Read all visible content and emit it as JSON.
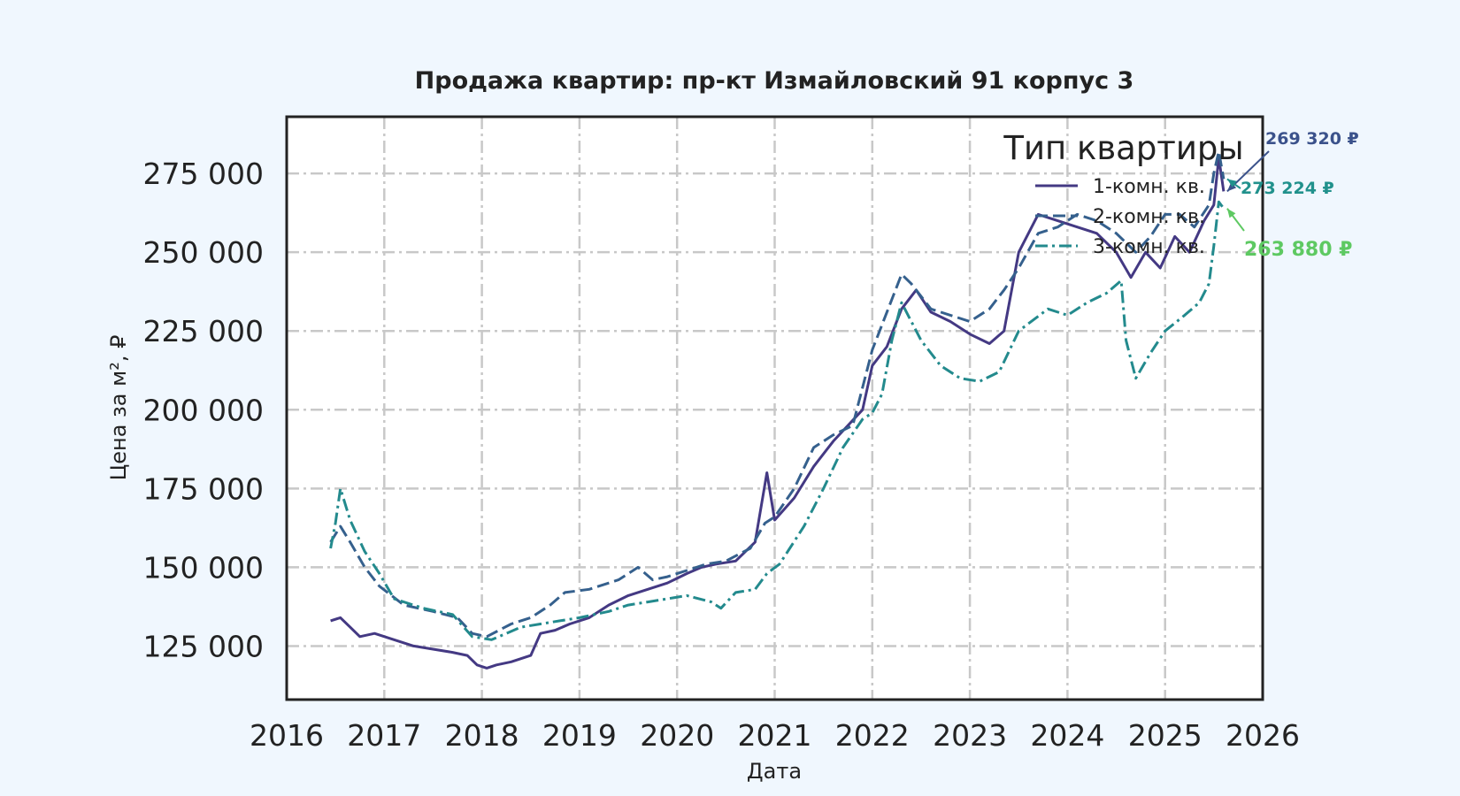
{
  "chart_data": {
    "type": "line",
    "title": "Продажа квартир: пр-кт Измайловский 91 корпус 3",
    "xlabel": "Дата",
    "ylabel": "Цена за м², ₽",
    "xlim": [
      2016.0,
      2026.0
    ],
    "ylim": [
      108000,
      293000
    ],
    "x_ticks": [
      "2016",
      "2017",
      "2018",
      "2019",
      "2020",
      "2021",
      "2022",
      "2023",
      "2024",
      "2025",
      "2026"
    ],
    "y_ticks": [
      "125 000",
      "150 000",
      "175 000",
      "200 000",
      "225 000",
      "250 000",
      "275 000"
    ],
    "grid": true,
    "legend": {
      "title": "Тип квартиры",
      "placement": "top-right",
      "entries": [
        "1-комн. кв.",
        "2-комн. кв.",
        "3-комн. кв."
      ]
    },
    "series": [
      {
        "name": "1-комн. кв.",
        "color": "#443983",
        "style": "solid",
        "x": [
          2016.45,
          2016.55,
          2016.65,
          2016.75,
          2016.9,
          2017.1,
          2017.3,
          2017.5,
          2017.7,
          2017.85,
          2017.95,
          2018.05,
          2018.15,
          2018.3,
          2018.5,
          2018.6,
          2018.75,
          2018.9,
          2019.1,
          2019.3,
          2019.5,
          2019.7,
          2019.9,
          2020.1,
          2020.25,
          2020.4,
          2020.6,
          2020.8,
          2020.92,
          2021.0,
          2021.2,
          2021.4,
          2021.6,
          2021.75,
          2021.9,
          2022.0,
          2022.15,
          2022.3,
          2022.45,
          2022.6,
          2022.8,
          2023.0,
          2023.2,
          2023.35,
          2023.5,
          2023.7,
          2023.9,
          2024.1,
          2024.3,
          2024.5,
          2024.65,
          2024.8,
          2024.95,
          2025.1,
          2025.25,
          2025.4,
          2025.5,
          2025.55,
          2025.6
        ],
        "y": [
          133000,
          134000,
          131000,
          128000,
          129000,
          127000,
          125000,
          124000,
          123000,
          122000,
          119000,
          118000,
          119000,
          120000,
          122000,
          129000,
          130000,
          132000,
          134000,
          138000,
          141000,
          143000,
          145000,
          148000,
          150000,
          151000,
          152000,
          158000,
          180000,
          165000,
          172000,
          182000,
          190000,
          195000,
          200000,
          214000,
          220000,
          232000,
          238000,
          231000,
          228000,
          224000,
          221000,
          225000,
          250000,
          262000,
          260000,
          258000,
          256000,
          250000,
          242000,
          250000,
          245000,
          255000,
          250000,
          260000,
          265000,
          280000,
          269320
        ]
      },
      {
        "name": "2-комн. кв.",
        "color": "#35608d",
        "style": "dashed",
        "x": [
          2016.45,
          2016.55,
          2016.65,
          2016.8,
          2016.95,
          2017.2,
          2017.5,
          2017.75,
          2017.9,
          2018.05,
          2018.3,
          2018.5,
          2018.7,
          2018.85,
          2019.1,
          2019.4,
          2019.6,
          2019.75,
          2019.9,
          2020.1,
          2020.3,
          2020.5,
          2020.75,
          2020.9,
          2021.0,
          2021.2,
          2021.4,
          2021.6,
          2021.8,
          2022.0,
          2022.2,
          2022.3,
          2022.4,
          2022.6,
          2022.8,
          2023.0,
          2023.2,
          2023.35,
          2023.5,
          2023.7,
          2023.9,
          2024.1,
          2024.3,
          2024.5,
          2024.7,
          2024.85,
          2025.0,
          2025.15,
          2025.3,
          2025.45,
          2025.5,
          2025.55,
          2025.6
        ],
        "y": [
          158000,
          163000,
          158000,
          150000,
          144000,
          138000,
          136000,
          134000,
          129000,
          128000,
          132000,
          134000,
          138000,
          142000,
          143000,
          146000,
          150000,
          146000,
          147000,
          149000,
          151000,
          152000,
          156000,
          164000,
          166000,
          175000,
          188000,
          192000,
          195000,
          219000,
          235000,
          243000,
          240000,
          232000,
          230000,
          228000,
          232000,
          238000,
          245000,
          256000,
          258000,
          262000,
          260000,
          256000,
          250000,
          255000,
          262000,
          262000,
          258000,
          265000,
          275000,
          282000,
          273224
        ]
      },
      {
        "name": "3-комн. кв.",
        "color": "#238a8d",
        "style": "dashdot",
        "x": [
          2016.45,
          2016.5,
          2016.55,
          2016.65,
          2016.8,
          2016.95,
          2017.1,
          2017.4,
          2017.7,
          2017.9,
          2018.1,
          2018.4,
          2018.6,
          2018.8,
          2019.0,
          2019.3,
          2019.5,
          2019.7,
          2019.9,
          2020.1,
          2020.35,
          2020.45,
          2020.6,
          2020.8,
          2020.92,
          2021.05,
          2021.3,
          2021.5,
          2021.7,
          2021.9,
          2022.0,
          2022.1,
          2022.2,
          2022.3,
          2022.5,
          2022.7,
          2022.9,
          2023.1,
          2023.3,
          2023.5,
          2023.8,
          2024.0,
          2024.2,
          2024.4,
          2024.55,
          2024.6,
          2024.7,
          2024.85,
          2025.0,
          2025.2,
          2025.35,
          2025.45,
          2025.5,
          2025.55,
          2025.6
        ],
        "y": [
          156000,
          164000,
          175000,
          165000,
          155000,
          148000,
          140000,
          137000,
          135000,
          128000,
          127000,
          131000,
          132000,
          133000,
          134000,
          136000,
          138000,
          139000,
          140000,
          141000,
          139000,
          137000,
          142000,
          143000,
          148000,
          151000,
          163000,
          175000,
          188000,
          197000,
          199000,
          205000,
          222000,
          234000,
          222000,
          214000,
          210000,
          209000,
          212000,
          225000,
          232000,
          230000,
          234000,
          237000,
          241000,
          222000,
          210000,
          218000,
          225000,
          230000,
          234000,
          240000,
          252000,
          266000,
          263880
        ]
      }
    ],
    "annotations": [
      {
        "text": "269 320 ₽",
        "series": "1-комн. кв.",
        "color": "#3b528b"
      },
      {
        "text": "273 224 ₽",
        "series": "2-комн. кв.",
        "color": "#21918c"
      },
      {
        "text": "263 880 ₽",
        "series": "3-комн. кв.",
        "color": "#5ec962"
      }
    ]
  }
}
